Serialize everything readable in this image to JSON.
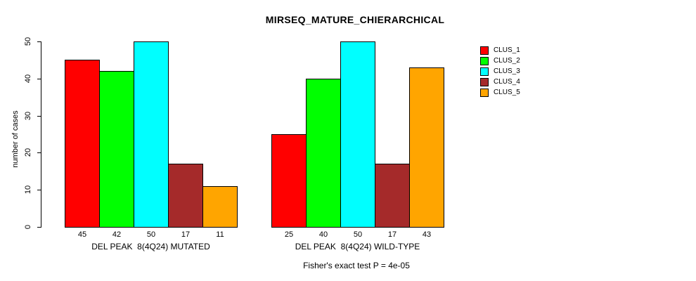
{
  "title": "MIRSEQ_MATURE_CHIERARCHICAL",
  "y_axis": {
    "label": "number of cases"
  },
  "footer": {
    "text": "Fisher's exact test P = 4e-05"
  },
  "legend": {
    "items": [
      {
        "label": "CLUS_1",
        "color": "#FF0000"
      },
      {
        "label": "CLUS_2",
        "color": "#00FF00"
      },
      {
        "label": "CLUS_3",
        "color": "#00FFFF"
      },
      {
        "label": "CLUS_4",
        "color": "#A52A2A"
      },
      {
        "label": "CLUS_5",
        "color": "#FFA500"
      }
    ]
  },
  "chart_data": {
    "type": "bar",
    "title": "MIRSEQ_MATURE_CHIERARCHICAL",
    "xlabel": "",
    "ylabel": "number of cases",
    "ylim": [
      0,
      50
    ],
    "yticks": [
      0,
      10,
      20,
      30,
      40,
      50
    ],
    "grid": false,
    "legend_position": "right",
    "categories": [
      "DEL PEAK  8(4Q24) MUTATED",
      "DEL PEAK  8(4Q24) WILD-TYPE"
    ],
    "series": [
      {
        "name": "CLUS_1",
        "color": "#FF0000",
        "values": [
          45,
          25
        ]
      },
      {
        "name": "CLUS_2",
        "color": "#00FF00",
        "values": [
          42,
          40
        ]
      },
      {
        "name": "CLUS_3",
        "color": "#00FFFF",
        "values": [
          50,
          50
        ]
      },
      {
        "name": "CLUS_4",
        "color": "#A52A2A",
        "values": [
          17,
          17
        ]
      },
      {
        "name": "CLUS_5",
        "color": "#FFA500",
        "values": [
          11,
          43
        ]
      }
    ],
    "bar_value_labels": [
      [
        45,
        42,
        50,
        17,
        11
      ],
      [
        25,
        40,
        50,
        17,
        43
      ]
    ],
    "annotation": "Fisher's exact test P = 4e-05"
  }
}
